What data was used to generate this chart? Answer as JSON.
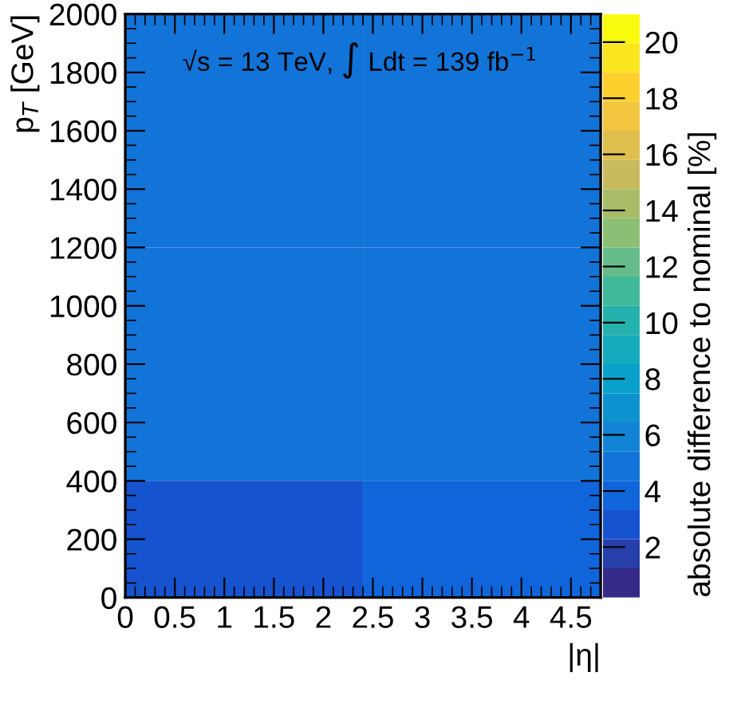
{
  "chart_data": {
    "type": "heatmap",
    "cells": [
      [
        4.8,
        4.8
      ],
      [
        4.8,
        4.8
      ],
      [
        4.8,
        4.8
      ],
      [
        4.8,
        4.8
      ],
      [
        2.8,
        3.8
      ]
    ],
    "xlabel": "|η|",
    "ylabel": "p$_{T}$ [GeV]",
    "clabel": "absolute difference to nominal [%]",
    "annotations": [
      "√s = 13 TeV, ∫ Ldt = 139 fb$^{−1}$"
    ],
    "xlim": [
      0,
      4.8
    ],
    "ylim": [
      0,
      2000
    ],
    "xticks": [
      0,
      0.5,
      1,
      1.5,
      2,
      2.5,
      3,
      3.5,
      4,
      4.5
    ],
    "yticks": [
      0,
      200,
      400,
      600,
      800,
      1000,
      1200,
      1400,
      1600,
      1800,
      2000
    ],
    "clim": [
      0.2,
      21
    ],
    "cticks": [
      2,
      4,
      6,
      8,
      10,
      12,
      14,
      16,
      18,
      20
    ],
    "grid": false
  }
}
